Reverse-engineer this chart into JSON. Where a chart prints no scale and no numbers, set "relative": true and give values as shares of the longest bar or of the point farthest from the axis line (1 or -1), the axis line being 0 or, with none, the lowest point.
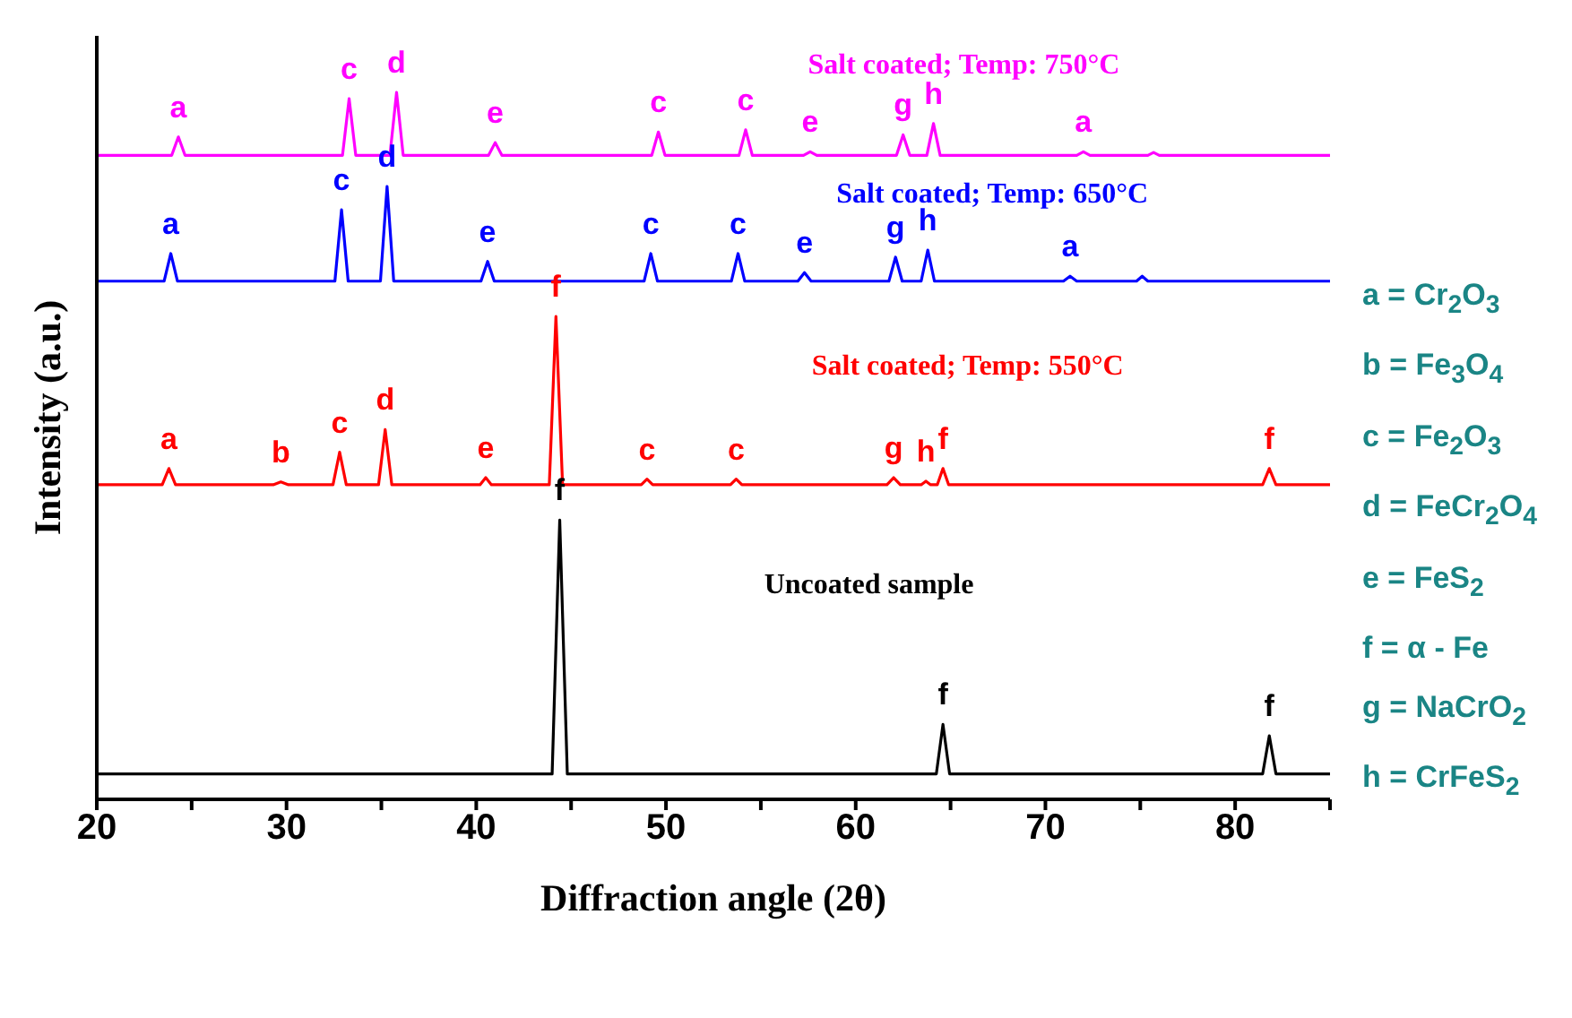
{
  "chart_data": {
    "type": "line",
    "relative": true,
    "xlabel": "Diffraction angle (2θ)",
    "ylabel": "Intensity (a.u.)",
    "xlim": [
      20,
      85
    ],
    "xticks": [
      20,
      {
        "value": 25,
        "label": null
      },
      30,
      {
        "value": 35,
        "label": null
      },
      40,
      {
        "value": 45,
        "label": null
      },
      50,
      {
        "value": 55,
        "label": null
      },
      60,
      {
        "value": 65,
        "label": null
      },
      70,
      {
        "value": 75,
        "label": null
      },
      80,
      {
        "value": 85,
        "label": null
      }
    ],
    "tick_labels": "x",
    "grid": false,
    "legend": false,
    "marker": "none",
    "line_style": "solid",
    "series": [
      {
        "name": "Uncoated sample",
        "color": "#000000",
        "x": [
          20,
          44.0,
          44.4,
          44.8,
          64.25,
          64.6,
          64.95,
          81.45,
          81.8,
          82.15,
          85
        ],
        "values": [
          0.036,
          0.036,
          0.395,
          0.036,
          0.036,
          0.106,
          0.036,
          0.036,
          0.09,
          0.036,
          0.036
        ]
      },
      {
        "name": "Salt coated; Temp: 550°C",
        "color": "#ff0000",
        "x": [
          20,
          23.45,
          23.8,
          24.15,
          29.3,
          29.7,
          30.1,
          32.45,
          32.8,
          33.15,
          34.85,
          35.2,
          35.55,
          40.2,
          40.5,
          40.8,
          43.85,
          44.2,
          44.55,
          48.7,
          49.0,
          49.3,
          53.4,
          53.7,
          54.0,
          61.65,
          62.0,
          62.35,
          63.45,
          63.7,
          63.95,
          64.3,
          64.6,
          64.9,
          81.45,
          81.8,
          82.15,
          85
        ],
        "values": [
          0.445,
          0.445,
          0.468,
          0.445,
          0.445,
          0.449,
          0.445,
          0.445,
          0.491,
          0.445,
          0.445,
          0.523,
          0.445,
          0.445,
          0.455,
          0.445,
          0.445,
          0.683,
          0.445,
          0.445,
          0.453,
          0.445,
          0.445,
          0.453,
          0.445,
          0.445,
          0.455,
          0.445,
          0.445,
          0.45,
          0.445,
          0.445,
          0.468,
          0.445,
          0.445,
          0.468,
          0.445,
          0.445
        ]
      },
      {
        "name": "Salt coated; Temp: 650°C",
        "color": "#0000ff",
        "x": [
          20,
          23.55,
          23.9,
          24.25,
          32.55,
          32.9,
          33.25,
          34.95,
          35.3,
          35.65,
          40.25,
          40.6,
          40.95,
          48.85,
          49.2,
          49.55,
          53.45,
          53.8,
          54.15,
          56.95,
          57.3,
          57.65,
          61.75,
          62.1,
          62.45,
          63.45,
          63.8,
          64.15,
          70.95,
          71.3,
          71.65,
          74.8,
          75.1,
          75.4,
          85
        ],
        "values": [
          0.733,
          0.733,
          0.772,
          0.733,
          0.733,
          0.834,
          0.733,
          0.733,
          0.867,
          0.733,
          0.733,
          0.761,
          0.733,
          0.733,
          0.772,
          0.733,
          0.733,
          0.772,
          0.733,
          0.733,
          0.745,
          0.733,
          0.733,
          0.767,
          0.733,
          0.733,
          0.777,
          0.733,
          0.733,
          0.74,
          0.733,
          0.733,
          0.74,
          0.733,
          0.733
        ]
      },
      {
        "name": "Salt coated; Temp: 750°C",
        "color": "#ff00ff",
        "x": [
          20,
          23.95,
          24.3,
          24.65,
          32.95,
          33.3,
          33.65,
          35.45,
          35.8,
          36.15,
          40.65,
          41.0,
          41.35,
          49.25,
          49.6,
          49.95,
          53.85,
          54.2,
          54.55,
          57.25,
          57.6,
          57.95,
          62.15,
          62.5,
          62.85,
          63.75,
          64.1,
          64.45,
          71.65,
          72.0,
          72.35,
          75.4,
          75.7,
          76.0,
          85
        ],
        "values": [
          0.911,
          0.911,
          0.937,
          0.911,
          0.911,
          0.991,
          0.911,
          0.911,
          1,
          0.911,
          0.911,
          0.929,
          0.911,
          0.911,
          0.944,
          0.911,
          0.911,
          0.947,
          0.911,
          0.911,
          0.916,
          0.911,
          0.911,
          0.94,
          0.911,
          0.911,
          0.956,
          0.911,
          0.911,
          0.916,
          0.911,
          0.911,
          0.915,
          0.911,
          0.911
        ]
      }
    ],
    "annotations": [
      {
        "text": "a",
        "x": 24.3,
        "y": 0.937
      },
      {
        "text": "c",
        "x": 33.3,
        "y": 0.991
      },
      {
        "text": "d",
        "x": 35.8,
        "y": 1
      },
      {
        "text": "e",
        "x": 41.0,
        "y": 0.929
      },
      {
        "text": "c",
        "x": 49.6,
        "y": 0.944
      },
      {
        "text": "c",
        "x": 54.2,
        "y": 0.947
      },
      {
        "text": "e",
        "x": 57.6,
        "y": 0.916
      },
      {
        "text": "g",
        "x": 62.5,
        "y": 0.94
      },
      {
        "text": "h",
        "x": 64.1,
        "y": 0.956
      },
      {
        "text": "a",
        "x": 72.0,
        "y": 0.916
      },
      {
        "text": "a",
        "x": 23.9,
        "y": 0.772
      },
      {
        "text": "c",
        "x": 32.9,
        "y": 0.834
      },
      {
        "text": "d",
        "x": 35.3,
        "y": 0.867
      },
      {
        "text": "e",
        "x": 40.6,
        "y": 0.761
      },
      {
        "text": "c",
        "x": 49.2,
        "y": 0.772
      },
      {
        "text": "c",
        "x": 53.8,
        "y": 0.772
      },
      {
        "text": "e",
        "x": 57.3,
        "y": 0.745
      },
      {
        "text": "g",
        "x": 62.1,
        "y": 0.767
      },
      {
        "text": "h",
        "x": 63.8,
        "y": 0.777
      },
      {
        "text": "a",
        "x": 71.3,
        "y": 0.74
      },
      {
        "text": "a",
        "x": 23.8,
        "y": 0.468
      },
      {
        "text": "b",
        "x": 29.7,
        "y": 0.449
      },
      {
        "text": "c",
        "x": 32.8,
        "y": 0.491
      },
      {
        "text": "d",
        "x": 35.2,
        "y": 0.523
      },
      {
        "text": "e",
        "x": 40.5,
        "y": 0.455
      },
      {
        "text": "f",
        "x": 44.2,
        "y": 0.683
      },
      {
        "text": "c",
        "x": 49.0,
        "y": 0.453
      },
      {
        "text": "c",
        "x": 53.7,
        "y": 0.453
      },
      {
        "text": "g",
        "x": 62.0,
        "y": 0.455
      },
      {
        "text": "h",
        "x": 63.7,
        "y": 0.45
      },
      {
        "text": "f",
        "x": 64.6,
        "y": 0.468
      },
      {
        "text": "f",
        "x": 81.8,
        "y": 0.468
      },
      {
        "text": "f",
        "x": 44.4,
        "y": 0.395
      },
      {
        "text": "f",
        "x": 64.6,
        "y": 0.106
      },
      {
        "text": "f",
        "x": 81.8,
        "y": 0.09
      },
      "a = Cr$_{2}$O$_{3}$",
      "b = Fe$_{3}$O$_{4}$",
      "c = Fe$_{2}$O$_{3}$",
      "d = FeCr$_{2}$O$_{4}$",
      "e = FeS$_{2}$",
      "f = α - Fe",
      "g = NaCrO$_{2}$",
      "h = CrFeS$_{2}$"
    ]
  }
}
